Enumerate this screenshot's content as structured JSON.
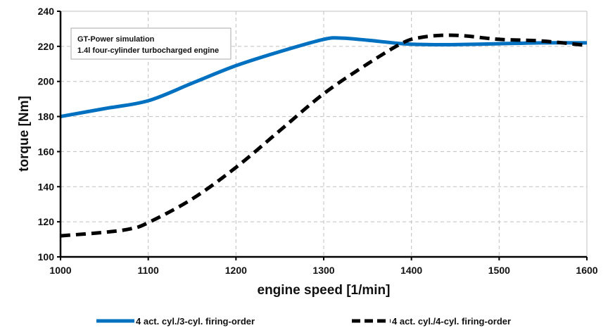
{
  "chart_data": {
    "type": "line",
    "title": "",
    "xlabel": "engine speed [1/min]",
    "ylabel": "torque [Nm]",
    "xlim": [
      1000,
      1600
    ],
    "ylim": [
      100,
      240
    ],
    "xticks": [
      1000,
      1100,
      1200,
      1300,
      1400,
      1500,
      1600
    ],
    "yticks": [
      100,
      120,
      140,
      160,
      180,
      200,
      220,
      240
    ],
    "grid": true,
    "legend_position": "bottom",
    "annotation": [
      "GT-Power simulation",
      "1.4l four-cylinder  turbocharged engine"
    ],
    "series": [
      {
        "name": "4 act. cyl./3-cyl. firing-order",
        "color": "#0070C0",
        "style": "solid",
        "x": [
          1000,
          1050,
          1100,
          1150,
          1200,
          1250,
          1300,
          1320,
          1350,
          1390,
          1420,
          1450,
          1500,
          1550,
          1600
        ],
        "y": [
          180,
          184.5,
          189,
          199,
          209,
          217,
          224,
          224.7,
          223.5,
          221.5,
          221,
          221,
          221.5,
          222,
          222
        ]
      },
      {
        "name": "4 act. cyl./4-cyl. firing-order",
        "color": "#000000",
        "style": "dashed",
        "x": [
          1000,
          1050,
          1080,
          1100,
          1150,
          1200,
          1250,
          1300,
          1350,
          1390,
          1410,
          1435,
          1460,
          1500,
          1550,
          1600
        ],
        "y": [
          112,
          114,
          116,
          119.5,
          133,
          151,
          172,
          193,
          210,
          222,
          225,
          226.3,
          226,
          224,
          223,
          220.5
        ]
      }
    ]
  }
}
